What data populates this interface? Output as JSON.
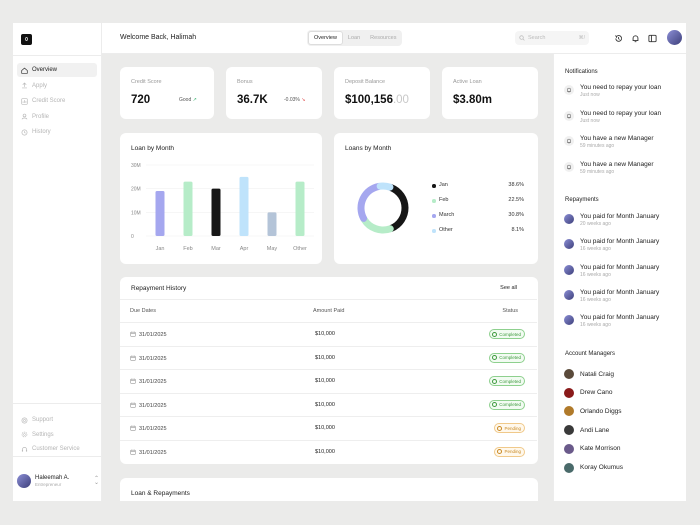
{
  "sidebar": {
    "logo": "0",
    "nav": [
      {
        "label": "Overview",
        "icon": "home-icon",
        "active": true
      },
      {
        "label": "Apply",
        "icon": "upload-icon",
        "active": false
      },
      {
        "label": "Credit Score",
        "icon": "chart-icon",
        "active": false
      },
      {
        "label": "Profile",
        "icon": "user-icon",
        "active": false
      },
      {
        "label": "History",
        "icon": "history-icon",
        "active": false
      }
    ],
    "bottom": [
      {
        "label": "Support",
        "icon": "help-icon"
      },
      {
        "label": "Settings",
        "icon": "gear-icon"
      },
      {
        "label": "Customer Service",
        "icon": "headset-icon"
      }
    ],
    "user": {
      "name": "Haleemah A.",
      "role": "Entrepreneur"
    }
  },
  "header": {
    "welcome": "Welcome Back, Halimah",
    "tabs": [
      "Overview",
      "Loan",
      "Resources"
    ],
    "active_tab": 0,
    "search_placeholder": "Search",
    "search_shortcut": "⌘/"
  },
  "stats": [
    {
      "label": "Credit Score",
      "value": "720",
      "tag": "Good"
    },
    {
      "label": "Bonus",
      "value": "36.7K",
      "tag": "-0.03%"
    },
    {
      "label": "Deposit Balance",
      "value_main": "$100,156",
      "value_dec": ".00"
    },
    {
      "label": "Active Loan",
      "value": "$3.80m"
    }
  ],
  "loan_by_month": {
    "title": "Loan by Month",
    "y_ticks": [
      "30M",
      "20M",
      "10M",
      "0"
    ],
    "categories": [
      "Jan",
      "Feb",
      "Mar",
      "Apr",
      "May",
      "Other"
    ]
  },
  "loans_by_month": {
    "title": "Loans by Month",
    "legend": [
      {
        "label": "Jan",
        "value": "38.6%"
      },
      {
        "label": "Feb",
        "value": "22.5%"
      },
      {
        "label": "March",
        "value": "30.8%"
      },
      {
        "label": "Other",
        "value": "8.1%"
      }
    ]
  },
  "chart_data": [
    {
      "type": "bar",
      "title": "Loan by Month",
      "categories": [
        "Jan",
        "Feb",
        "Mar",
        "Apr",
        "May",
        "Other"
      ],
      "values": [
        19,
        23,
        20,
        25,
        10,
        23
      ],
      "colors": [
        "#a5a7ef",
        "#b6ecc8",
        "#161616",
        "#bfe3fb",
        "#b4c4d8",
        "#b6ecc8"
      ],
      "ylim": [
        0,
        30
      ],
      "grid": true
    },
    {
      "type": "pie",
      "title": "Loans by Month",
      "categories": [
        "Jan",
        "Feb",
        "March",
        "Other"
      ],
      "values": [
        38.6,
        22.5,
        30.8,
        8.1
      ],
      "colors": [
        "#161616",
        "#b6ecc8",
        "#a5a7ef",
        "#bfe3fb"
      ],
      "donut": true
    }
  ],
  "repayment": {
    "title": "Repayment History",
    "see_all": "See all",
    "columns": [
      "Due Dates",
      "Amount Paid",
      "Status"
    ],
    "rows": [
      {
        "date": "31/01/2025",
        "amount": "$10,000",
        "status": "Completed"
      },
      {
        "date": "31/01/2025",
        "amount": "$10,000",
        "status": "Completed"
      },
      {
        "date": "31/01/2025",
        "amount": "$10,000",
        "status": "Completed"
      },
      {
        "date": "31/01/2025",
        "amount": "$10,000",
        "status": "Completed"
      },
      {
        "date": "31/01/2025",
        "amount": "$10,000",
        "status": "Pending"
      },
      {
        "date": "31/01/2025",
        "amount": "$10,000",
        "status": "Pending"
      }
    ]
  },
  "loan_repayments": {
    "title": "Loan & Repayments"
  },
  "notifications": {
    "title": "Notifications",
    "items": [
      {
        "text": "You need to repay your loan",
        "time": "Just now"
      },
      {
        "text": "You need to repay your loan",
        "time": "Just now"
      },
      {
        "text": "You have a new Manager",
        "time": "59 minutes ago"
      },
      {
        "text": "You have a new Manager",
        "time": "59 minutes ago"
      }
    ]
  },
  "repayments": {
    "title": "Repayments",
    "items": [
      {
        "text": "You paid for Month January",
        "time": "20 weeks ago"
      },
      {
        "text": "You paid for Month January",
        "time": "16 weeks ago"
      },
      {
        "text": "You paid for Month January",
        "time": "16 weeks ago"
      },
      {
        "text": "You paid for Month January",
        "time": "16 weeks ago"
      },
      {
        "text": "You paid for Month January",
        "time": "16 weeks ago"
      }
    ]
  },
  "managers": {
    "title": "Account Managers",
    "items": [
      {
        "name": "Natali Craig",
        "color": "#5a4a3a"
      },
      {
        "name": "Drew Cano",
        "color": "#8a1a1a"
      },
      {
        "name": "Orlando Diggs",
        "color": "#b07a2a"
      },
      {
        "name": "Andi Lane",
        "color": "#3a3a3a"
      },
      {
        "name": "Kate Morrison",
        "color": "#6a5a8a"
      },
      {
        "name": "Koray Okumus",
        "color": "#4a6a6a"
      }
    ]
  }
}
